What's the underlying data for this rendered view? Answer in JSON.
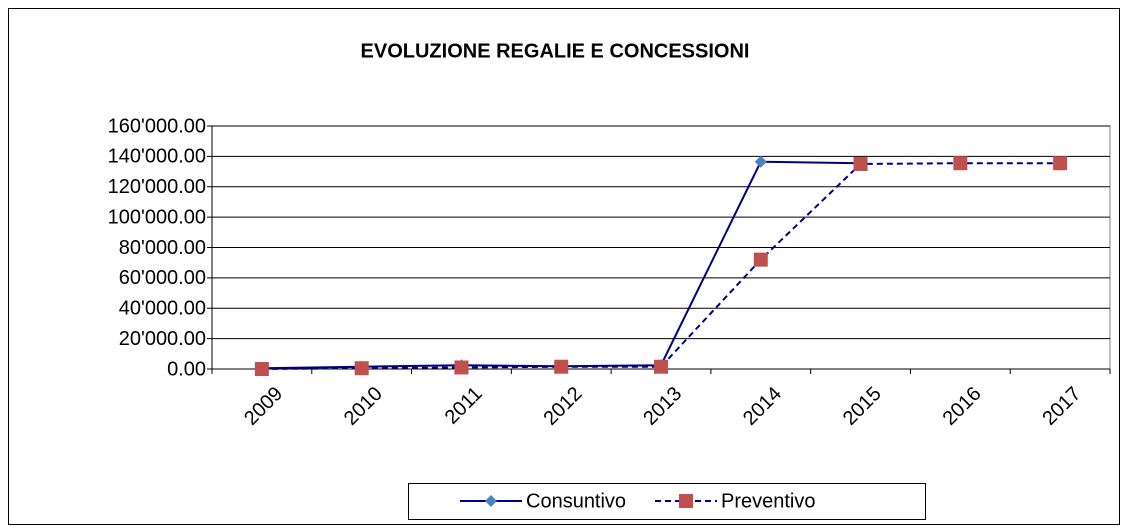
{
  "chart_data": {
    "type": "line",
    "title": "EVOLUZIONE REGALIE E CONCESSIONI",
    "categories": [
      "2009",
      "2010",
      "2011",
      "2012",
      "2013",
      "2014",
      "2015",
      "2016",
      "2017"
    ],
    "series": [
      {
        "name": "Consuntivo",
        "color": "#000080",
        "marker_color": "#4f81bd",
        "marker": "diamond",
        "dash": false,
        "values": [
          500,
          1500,
          2500,
          1800,
          2500,
          136500,
          135500,
          null,
          null
        ]
      },
      {
        "name": "Preventivo",
        "color": "#000080",
        "marker_color": "#c0504d",
        "marker": "square",
        "dash": true,
        "values": [
          0,
          500,
          1000,
          1500,
          1500,
          72000,
          135000,
          135500,
          135500
        ]
      }
    ],
    "ylim": [
      0,
      160000
    ],
    "yticks": [
      {
        "value": 0,
        "label": "0.00"
      },
      {
        "value": 20000,
        "label": "20'000.00"
      },
      {
        "value": 40000,
        "label": "40'000.00"
      },
      {
        "value": 60000,
        "label": "60'000.00"
      },
      {
        "value": 80000,
        "label": "80'000.00"
      },
      {
        "value": 100000,
        "label": "100'000.00"
      },
      {
        "value": 120000,
        "label": "120'000.00"
      },
      {
        "value": 140000,
        "label": "140'000.00"
      },
      {
        "value": 160000,
        "label": "160'000.00"
      }
    ],
    "grid": true,
    "legend": "bottom"
  }
}
